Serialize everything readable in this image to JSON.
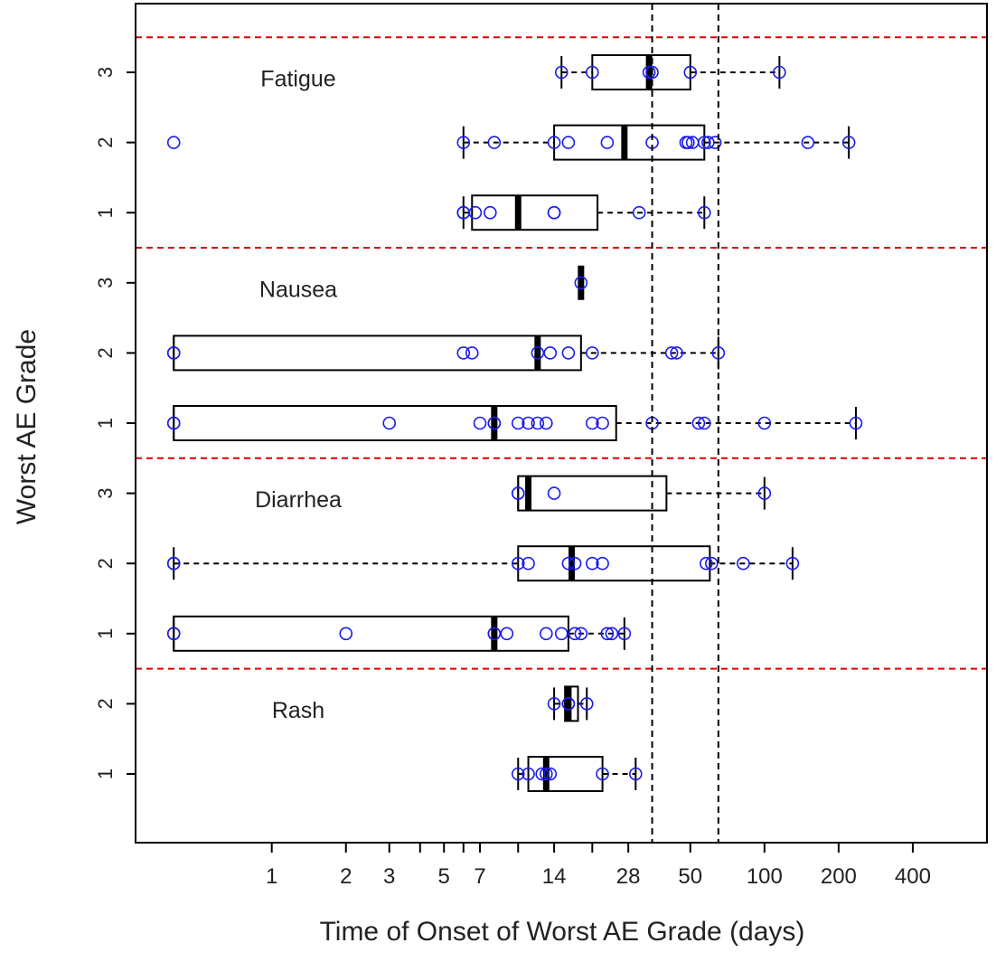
{
  "chart_data": {
    "type": "boxplot",
    "title": "",
    "xlabel": "Time of Onset of Worst AE Grade (days)",
    "ylabel": "Worst AE Grade",
    "x_scale": "log",
    "xlim": [
      0.28,
      800
    ],
    "x_ticks": [
      1,
      2,
      3,
      4,
      5,
      6,
      7,
      10,
      14,
      20,
      28,
      50,
      100,
      200,
      400
    ],
    "x_tick_labels": [
      {
        "value": 1,
        "label": "1"
      },
      {
        "value": 2,
        "label": "2"
      },
      {
        "value": 3,
        "label": "3"
      },
      {
        "value": 5,
        "label": "5"
      },
      {
        "value": 7,
        "label": "7"
      },
      {
        "value": 14,
        "label": "14"
      },
      {
        "value": 28,
        "label": "28"
      },
      {
        "value": 50,
        "label": "50"
      },
      {
        "value": 100,
        "label": "100"
      },
      {
        "value": 200,
        "label": "200"
      },
      {
        "value": 400,
        "label": "400"
      }
    ],
    "reference_lines_x": [
      35,
      65
    ],
    "colors": {
      "points": "#1a1aee",
      "separator": "#dd0000",
      "box": "#000000"
    },
    "groups": [
      {
        "name": "Fatigue",
        "rows": [
          {
            "grade": "3",
            "box": [
              15,
              20,
              34,
              50,
              115
            ],
            "points": [
              15,
              20,
              34,
              35,
              50,
              115
            ]
          },
          {
            "grade": "2",
            "box": [
              6,
              14,
              27,
              57,
              220
            ],
            "points": [
              0.4,
              6,
              8,
              14,
              16,
              23,
              35,
              48,
              49,
              51,
              57,
              59,
              63,
              150,
              220
            ]
          },
          {
            "grade": "1",
            "box": [
              6,
              6.5,
              10,
              21,
              57
            ],
            "points": [
              6,
              6,
              6.7,
              7.7,
              14,
              14,
              31,
              57
            ]
          }
        ]
      },
      {
        "name": "Nausea",
        "rows": [
          {
            "grade": "3",
            "box": [
              18,
              18,
              18,
              18,
              18
            ],
            "points": [
              18
            ]
          },
          {
            "grade": "2",
            "box": [
              0.4,
              0.4,
              12,
              18,
              65
            ],
            "points": [
              0.4,
              0.4,
              6,
              6.5,
              12,
              13.5,
              16,
              20,
              42,
              44,
              65
            ]
          },
          {
            "grade": "1",
            "box": [
              0.4,
              0.4,
              8,
              25,
              235
            ],
            "points": [
              0.4,
              0.4,
              3,
              7,
              8,
              8,
              10,
              11,
              12,
              13,
              20,
              22,
              35,
              54,
              57,
              100,
              235
            ]
          }
        ]
      },
      {
        "name": "Diarrhea",
        "rows": [
          {
            "grade": "3",
            "box": [
              10,
              10,
              11,
              40,
              100
            ],
            "points": [
              10,
              10,
              14,
              100
            ]
          },
          {
            "grade": "2",
            "box": [
              0.4,
              10,
              16.5,
              60,
              130
            ],
            "points": [
              0.4,
              0.4,
              10,
              11,
              16,
              17,
              20,
              22,
              58,
              61,
              82,
              130
            ]
          },
          {
            "grade": "1",
            "box": [
              0.4,
              0.4,
              8,
              16,
              27
            ],
            "points": [
              0.4,
              0.4,
              2,
              8,
              8,
              9,
              13,
              15,
              17,
              18,
              23,
              24,
              27
            ]
          }
        ]
      },
      {
        "name": "Rash",
        "rows": [
          {
            "grade": "2",
            "box": [
              14,
              15.5,
              16,
              17.5,
              19
            ],
            "points": [
              14,
              16,
              16,
              19
            ]
          },
          {
            "grade": "1",
            "box": [
              10,
              11,
              13,
              22,
              30
            ],
            "points": [
              10,
              11,
              12.5,
              13,
              13.5,
              22,
              30
            ]
          }
        ]
      }
    ]
  }
}
